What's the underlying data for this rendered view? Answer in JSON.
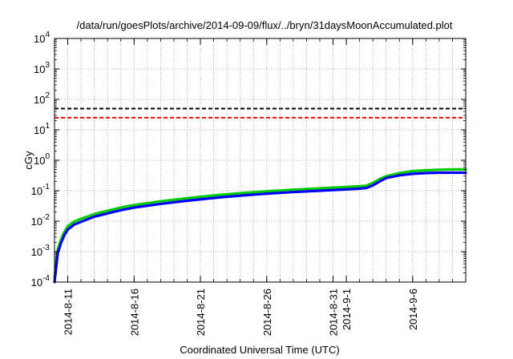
{
  "chart_data": {
    "type": "line",
    "title": "/data/run/goesPlots/archive/2014-09-09/flux/../bryn/31daysMoonAccumulated.plot",
    "xlabel": "Coordinated Universal Time (UTC)",
    "ylabel": "cGy",
    "yscale": "log",
    "ylim": [
      0.0001,
      10000
    ],
    "xlim": [
      "2014-08-10",
      "2014-09-10"
    ],
    "grid": true,
    "y_ticks": [
      {
        "base": "10",
        "exp": "-4"
      },
      {
        "base": "10",
        "exp": "-3"
      },
      {
        "base": "10",
        "exp": "-2"
      },
      {
        "base": "10",
        "exp": "-1"
      },
      {
        "base": "10",
        "exp": "0"
      },
      {
        "base": "10",
        "exp": "1"
      },
      {
        "base": "10",
        "exp": "2"
      },
      {
        "base": "10",
        "exp": "3"
      },
      {
        "base": "10",
        "exp": "4"
      }
    ],
    "x_ticks": [
      {
        "date": "2014-08-11",
        "label": "2014-8-11"
      },
      {
        "date": "2014-08-16",
        "label": "2014-8-16"
      },
      {
        "date": "2014-08-21",
        "label": "2014-8-21"
      },
      {
        "date": "2014-08-26",
        "label": "2014-8-26"
      },
      {
        "date": "2014-08-31",
        "label": "2014-8-31"
      },
      {
        "date": "2014-09-01",
        "label": "2014-9-1"
      },
      {
        "date": "2014-09-06",
        "label": "2014-9-6"
      }
    ],
    "hlines": [
      {
        "y": 50,
        "color": "#000000",
        "dash": "dashed"
      },
      {
        "y": 25,
        "color": "#ff0000",
        "dash": "dashed"
      }
    ],
    "x": [
      "2014-08-10",
      "2014-08-10T06:00",
      "2014-08-10T12:00",
      "2014-08-10T18:00",
      "2014-08-11",
      "2014-08-11T12:00",
      "2014-08-12",
      "2014-08-13",
      "2014-08-14",
      "2014-08-15",
      "2014-08-16",
      "2014-08-18",
      "2014-08-20",
      "2014-08-22",
      "2014-08-24",
      "2014-08-26",
      "2014-08-28",
      "2014-08-30",
      "2014-09-01",
      "2014-09-02",
      "2014-09-02T12:00",
      "2014-09-03",
      "2014-09-03T12:00",
      "2014-09-04",
      "2014-09-05",
      "2014-09-06",
      "2014-09-07",
      "2014-09-08",
      "2014-09-09",
      "2014-09-10"
    ],
    "series": [
      {
        "color": "#00cc00",
        "values": [
          0.00014,
          0.0012,
          0.0026,
          0.0045,
          0.0068,
          0.0098,
          0.012,
          0.017,
          0.022,
          0.028,
          0.034,
          0.045,
          0.057,
          0.07,
          0.083,
          0.096,
          0.108,
          0.12,
          0.132,
          0.14,
          0.145,
          0.18,
          0.24,
          0.3,
          0.38,
          0.44,
          0.47,
          0.49,
          0.5,
          0.5
        ]
      },
      {
        "color": "#0000ff",
        "values": [
          0.0001,
          0.0009,
          0.002,
          0.0035,
          0.0053,
          0.0078,
          0.0095,
          0.014,
          0.018,
          0.023,
          0.028,
          0.037,
          0.047,
          0.058,
          0.069,
          0.08,
          0.09,
          0.1,
          0.11,
          0.117,
          0.122,
          0.15,
          0.2,
          0.26,
          0.32,
          0.36,
          0.38,
          0.39,
          0.39,
          0.39
        ]
      }
    ]
  }
}
